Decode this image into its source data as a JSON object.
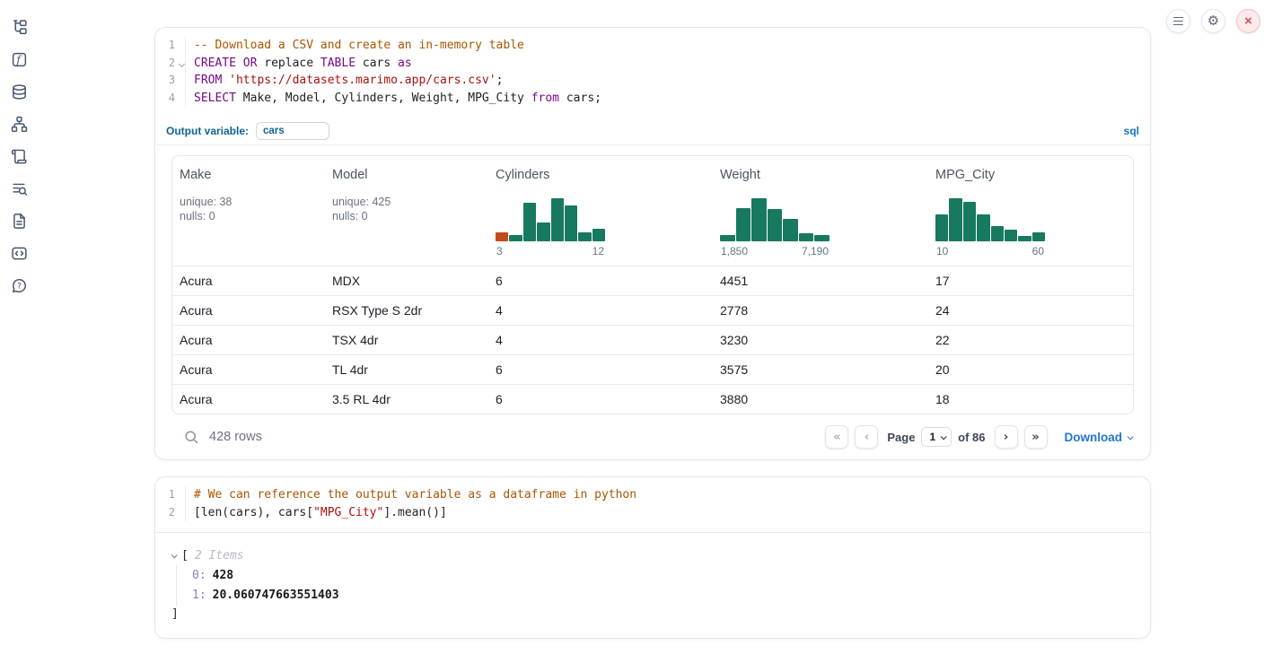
{
  "colors": {
    "hist_green": "#17795f",
    "hist_orange": "#c24b1b",
    "accent_blue": "#0e6494",
    "link_blue": "#2176d2",
    "close_red": "#d65050"
  },
  "sidebar": {
    "items": [
      {
        "name": "file-tree"
      },
      {
        "name": "functions"
      },
      {
        "name": "datasources"
      },
      {
        "name": "dependency-graph"
      },
      {
        "name": "logs"
      },
      {
        "name": "scratchpad-search"
      },
      {
        "name": "documentation"
      },
      {
        "name": "snippets"
      },
      {
        "name": "help"
      }
    ]
  },
  "topbar": {
    "buttons": [
      {
        "name": "menu"
      },
      {
        "name": "settings"
      },
      {
        "name": "shutdown"
      }
    ]
  },
  "cells": {
    "sql": {
      "lines": [
        {
          "n": "1",
          "tokens": [
            {
              "t": "-- Download a CSV and create an in-memory table",
              "c": "com"
            }
          ]
        },
        {
          "n": "2",
          "fold": true,
          "tokens": [
            {
              "t": "CREATE",
              "c": "kw"
            },
            {
              "t": " ",
              "c": "pl"
            },
            {
              "t": "OR",
              "c": "kw"
            },
            {
              "t": " replace ",
              "c": "pl"
            },
            {
              "t": "TABLE",
              "c": "kw"
            },
            {
              "t": " cars ",
              "c": "pl"
            },
            {
              "t": "as",
              "c": "kw"
            }
          ]
        },
        {
          "n": "3",
          "tokens": [
            {
              "t": "FROM",
              "c": "kw"
            },
            {
              "t": " ",
              "c": "pl"
            },
            {
              "t": "'https://datasets.marimo.app/cars.csv'",
              "c": "str"
            },
            {
              "t": ";",
              "c": "pl"
            }
          ]
        },
        {
          "n": "4",
          "tokens": [
            {
              "t": "SELECT",
              "c": "kw"
            },
            {
              "t": " Make, Model, Cylinders, Weight, MPG_City ",
              "c": "pl"
            },
            {
              "t": "from",
              "c": "kw"
            },
            {
              "t": " cars;",
              "c": "pl"
            }
          ]
        }
      ],
      "output_variable_label": "Output variable:",
      "output_variable_value": "cars",
      "language_badge": "sql"
    },
    "python": {
      "lines": [
        {
          "n": "1",
          "tokens": [
            {
              "t": "# We can reference the output variable as a dataframe in python",
              "c": "com"
            }
          ]
        },
        {
          "n": "2",
          "tokens": [
            {
              "t": "[len(cars), cars[",
              "c": "pl"
            },
            {
              "t": "\"MPG_City\"",
              "c": "str"
            },
            {
              "t": "].mean()]",
              "c": "pl"
            }
          ]
        }
      ],
      "output": {
        "open_bracket": "[",
        "items_label": "2 Items",
        "entries": [
          {
            "index": "0",
            "value": "428"
          },
          {
            "index": "1",
            "value": "20.060747663551403"
          }
        ],
        "close_bracket": "]"
      }
    }
  },
  "table": {
    "columns": [
      {
        "title": "Make",
        "type": "text",
        "stats": [
          "unique: 38",
          "nulls: 0"
        ]
      },
      {
        "title": "Model",
        "type": "text",
        "stats": [
          "unique: 425",
          "nulls: 0"
        ]
      },
      {
        "title": "Cylinders",
        "type": "hist",
        "min_label": "3",
        "max_label": "12",
        "bars": [
          {
            "h": 0.2,
            "c": "orange"
          },
          {
            "h": 0.13
          },
          {
            "h": 0.85
          },
          {
            "h": 0.42
          },
          {
            "h": 0.95
          },
          {
            "h": 0.8
          },
          {
            "h": 0.2
          },
          {
            "h": 0.28
          }
        ]
      },
      {
        "title": "Weight",
        "type": "hist",
        "min_label": "1,850",
        "max_label": "7,190",
        "bars": [
          {
            "h": 0.14
          },
          {
            "h": 0.73
          },
          {
            "h": 0.95
          },
          {
            "h": 0.72
          },
          {
            "h": 0.5
          },
          {
            "h": 0.18
          },
          {
            "h": 0.14
          }
        ]
      },
      {
        "title": "MPG_City",
        "type": "hist",
        "min_label": "10",
        "max_label": "60",
        "bars": [
          {
            "h": 0.6
          },
          {
            "h": 0.95
          },
          {
            "h": 0.87
          },
          {
            "h": 0.6
          },
          {
            "h": 0.34
          },
          {
            "h": 0.26
          },
          {
            "h": 0.11
          },
          {
            "h": 0.2
          }
        ]
      }
    ],
    "rows": [
      [
        "Acura",
        "MDX",
        "6",
        "4451",
        "17"
      ],
      [
        "Acura",
        "RSX Type S 2dr",
        "4",
        "2778",
        "24"
      ],
      [
        "Acura",
        "TSX 4dr",
        "4",
        "3230",
        "22"
      ],
      [
        "Acura",
        "TL 4dr",
        "6",
        "3575",
        "20"
      ],
      [
        "Acura",
        "3.5 RL 4dr",
        "6",
        "3880",
        "18"
      ]
    ],
    "footer": {
      "row_count": "428 rows",
      "page_label": "Page",
      "page_value": "1",
      "of_label": "of 86",
      "download_label": "Download"
    }
  }
}
